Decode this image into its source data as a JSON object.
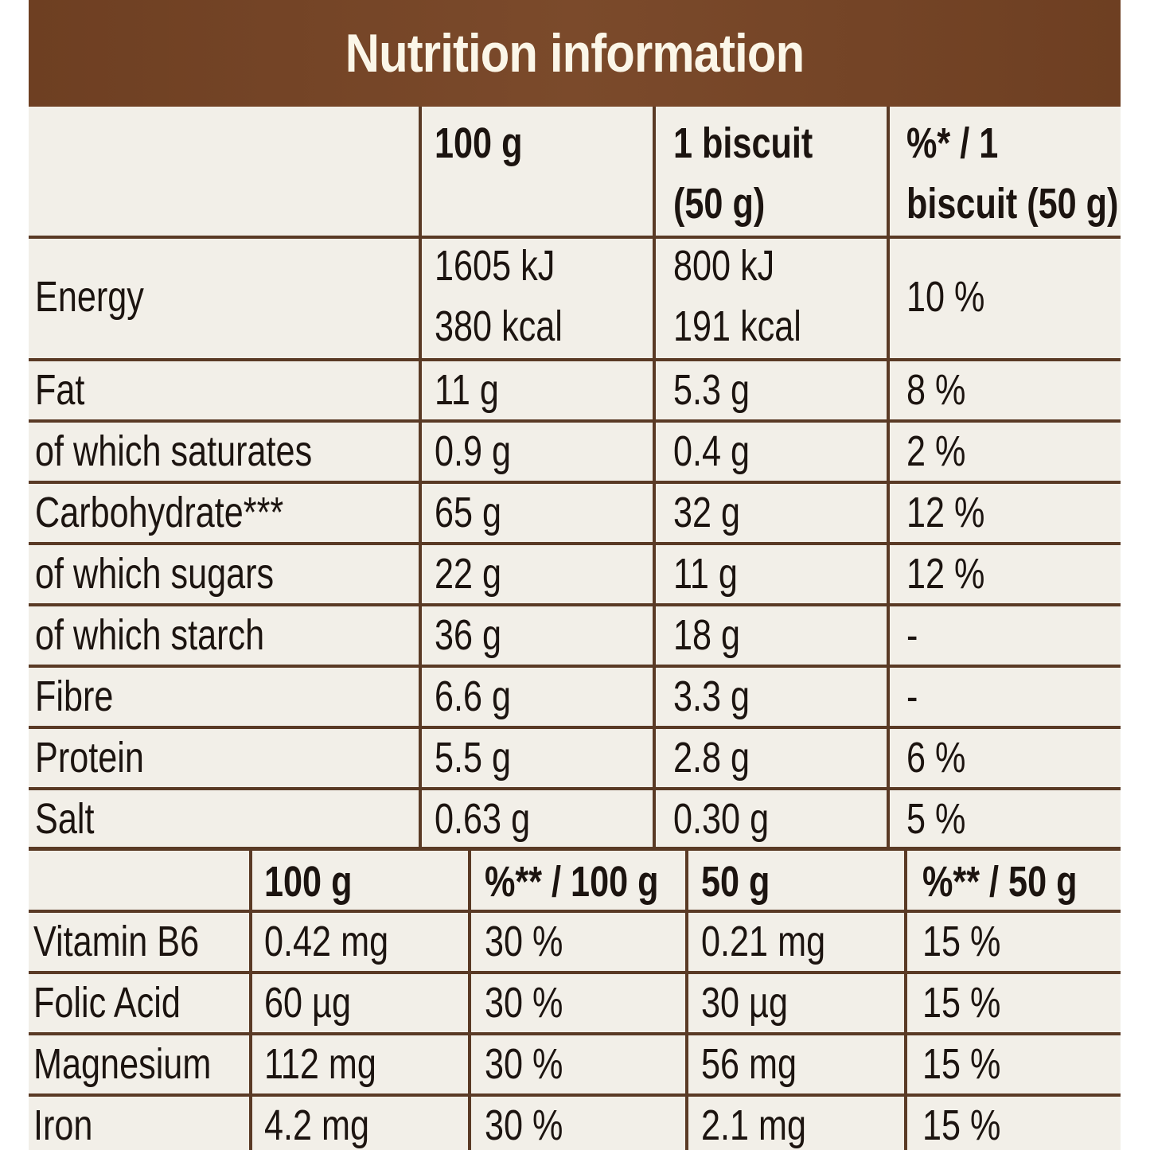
{
  "title": "Nutrition information",
  "colors": {
    "header": "#7b4a2b",
    "title": "#fbf6e8",
    "panel": "#f2efe8",
    "rule": "#5a3a25",
    "text": "#1c1410"
  },
  "main_table": {
    "headers": {
      "per_100g": "100 g",
      "per_biscuit_1": "1 biscuit",
      "per_biscuit_2": "(50 g)",
      "ri_1": "%* / 1",
      "ri_2": "biscuit (50 g)"
    },
    "energy": {
      "label": "Energy",
      "kj_100": "1605 kJ",
      "kcal_100": "380 kcal",
      "kj_b": "800 kJ",
      "kcal_b": "191 kcal",
      "ri": "10 %"
    },
    "rows": [
      {
        "label": "Fat",
        "v100": "11 g",
        "vb": "5.3 g",
        "ri": "8 %"
      },
      {
        "label": "of which saturates",
        "v100": "0.9 g",
        "vb": "0.4 g",
        "ri": "2 %"
      },
      {
        "label": "Carbohydrate***",
        "v100": "65 g",
        "vb": "32 g",
        "ri": "12 %"
      },
      {
        "label": "of which sugars",
        "v100": "22 g",
        "vb": "11 g",
        "ri": "12 %"
      },
      {
        "label": "of which starch",
        "v100": "36 g",
        "vb": "18 g",
        "ri": "-"
      },
      {
        "label": "Fibre",
        "v100": "6.6 g",
        "vb": "3.3 g",
        "ri": "-"
      },
      {
        "label": "Protein",
        "v100": "5.5 g",
        "vb": "2.8 g",
        "ri": "6 %"
      },
      {
        "label": "Salt",
        "v100": "0.63 g",
        "vb": "0.30 g",
        "ri": "5 %"
      }
    ]
  },
  "vitamin_table": {
    "headers": [
      "100 g",
      "%** / 100 g",
      "50 g",
      "%** / 50 g"
    ],
    "rows": [
      {
        "label": "Vitamin B6",
        "v100": "0.42 mg",
        "ri100": "30 %",
        "v50": "0.21 mg",
        "ri50": "15 %"
      },
      {
        "label": "Folic Acid",
        "v100": "60 µg",
        "ri100": "30 %",
        "v50": "30 µg",
        "ri50": "15 %"
      },
      {
        "label": "Magnesium",
        "v100": "112 mg",
        "ri100": "30 %",
        "v50": "56 mg",
        "ri50": "15 %"
      },
      {
        "label": "Iron",
        "v100": "4.2 mg",
        "ri100": "30 %",
        "v50": "2.1 mg",
        "ri50": "15 %"
      }
    ]
  }
}
